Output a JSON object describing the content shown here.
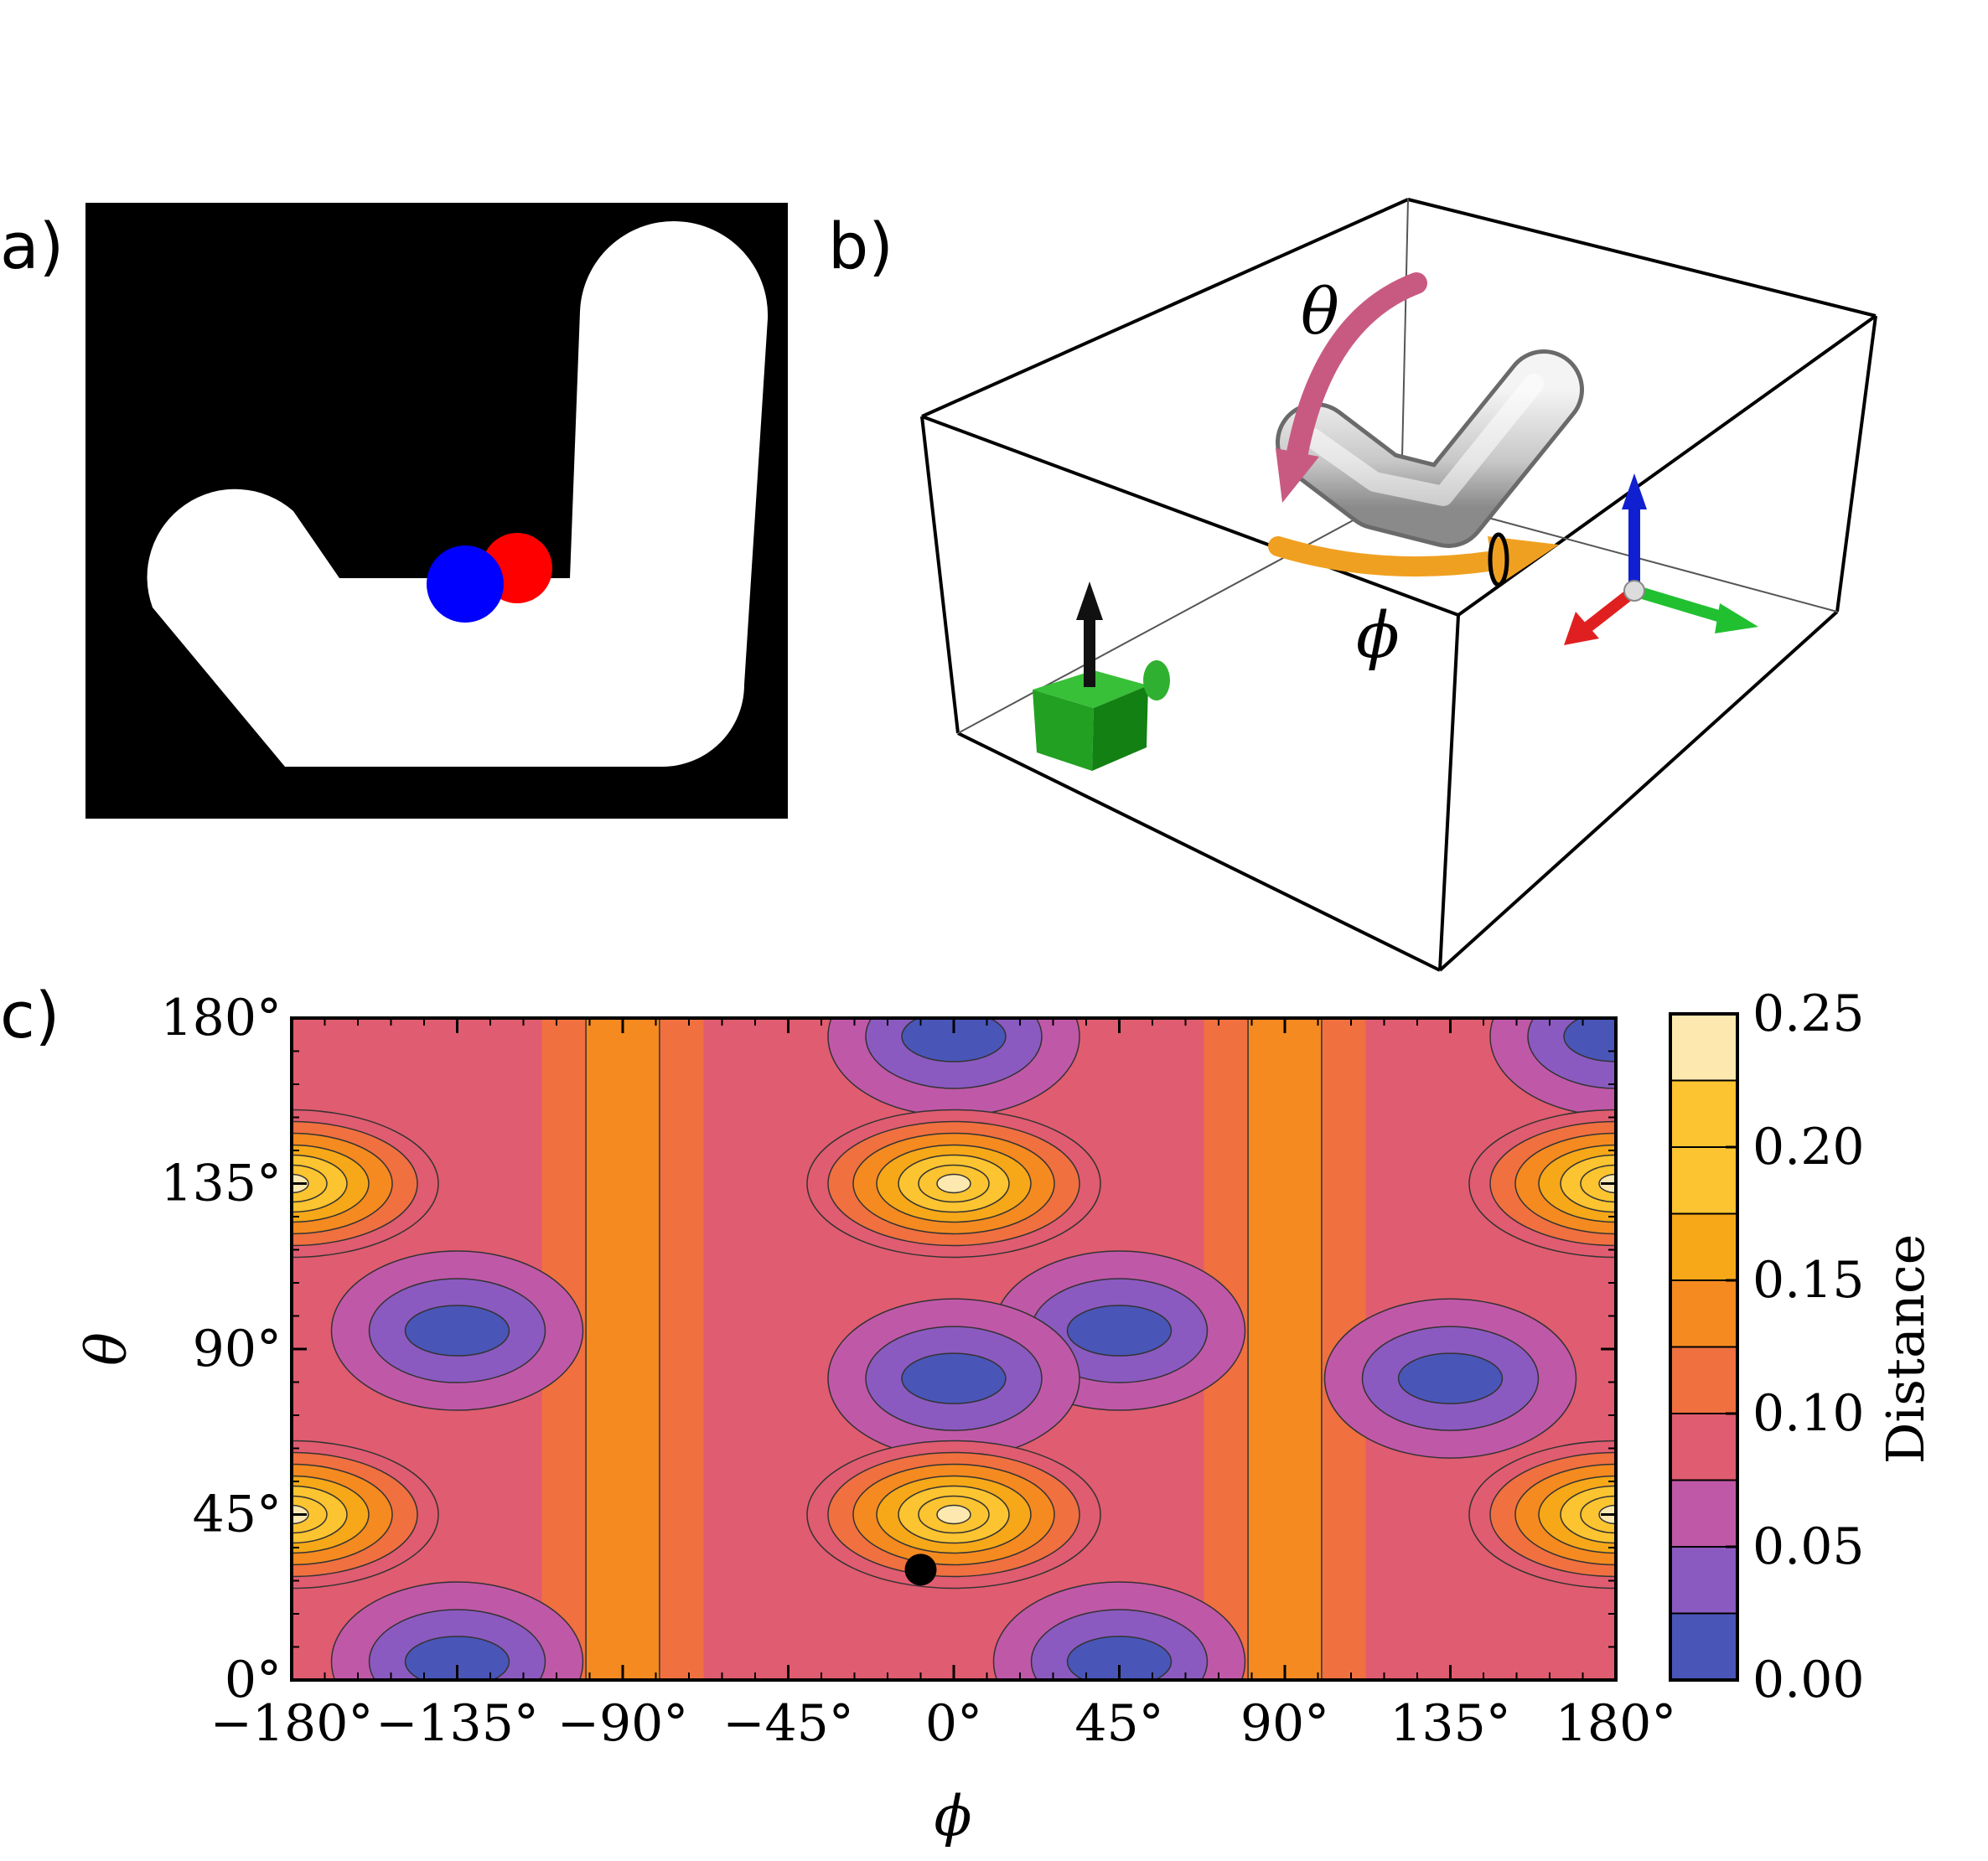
{
  "panels": {
    "a": {
      "label": "a)"
    },
    "b": {
      "label": "b)",
      "theta_label": "θ",
      "phi_label": "ϕ"
    },
    "c": {
      "label": "c)"
    }
  },
  "colors": {
    "disk_red": "#ff0000",
    "disk_blue": "#0000ff",
    "arrow_theta": "#c85a82",
    "arrow_phi": "#f0a020",
    "cube": "#1a9e1a"
  },
  "chart_data": {
    "type": "contour",
    "xlabel": "ϕ",
    "ylabel": "θ",
    "xlim": [
      -180,
      180
    ],
    "ylim": [
      0,
      180
    ],
    "xticks": [
      "−180°",
      "−135°",
      "−90°",
      "−45°",
      "0°",
      "45°",
      "90°",
      "135°",
      "180°"
    ],
    "yticks": [
      "0°",
      "45°",
      "90°",
      "135°",
      "180°"
    ],
    "colorbar": {
      "title": "Distance",
      "range": [
        0.0,
        0.25
      ],
      "ticks": [
        "0.00",
        "0.05",
        "0.10",
        "0.15",
        "0.20",
        "0.25"
      ],
      "level_colors": [
        "#4a55b8",
        "#8a5ac0",
        "#c058a8",
        "#e05c70",
        "#f07040",
        "#f48a20",
        "#f6a818",
        "#fbc430",
        "#fde8b0"
      ]
    },
    "maxima": [
      {
        "phi": 0,
        "theta": 135,
        "value": 0.2
      },
      {
        "phi": 0,
        "theta": 45,
        "value": 0.2
      },
      {
        "phi": -180,
        "theta": 135,
        "value": 0.2
      },
      {
        "phi": -180,
        "theta": 45,
        "value": 0.2
      },
      {
        "phi": 180,
        "theta": 135,
        "value": 0.2
      },
      {
        "phi": 180,
        "theta": 45,
        "value": 0.2
      }
    ],
    "minima": [
      {
        "phi": -135,
        "theta": 95,
        "value": 0.0
      },
      {
        "phi": 45,
        "theta": 95,
        "value": 0.0
      },
      {
        "phi": 0,
        "theta": 82,
        "value": 0.0
      },
      {
        "phi": 135,
        "theta": 82,
        "value": 0.0
      },
      {
        "phi": -135,
        "theta": 5,
        "value": 0.0
      },
      {
        "phi": 45,
        "theta": 5,
        "value": 0.0
      },
      {
        "phi": 0,
        "theta": 175,
        "value": 0.0
      },
      {
        "phi": 180,
        "theta": 175,
        "value": 0.0
      }
    ],
    "marker": {
      "phi": -9,
      "theta": 30
    }
  }
}
